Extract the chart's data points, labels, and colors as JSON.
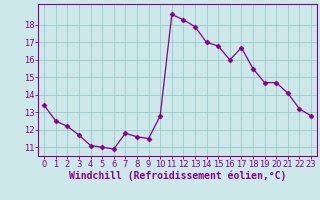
{
  "x": [
    0,
    1,
    2,
    3,
    4,
    5,
    6,
    7,
    8,
    9,
    10,
    11,
    12,
    13,
    14,
    15,
    16,
    17,
    18,
    19,
    20,
    21,
    22,
    23
  ],
  "y": [
    13.4,
    12.5,
    12.2,
    11.7,
    11.1,
    11.0,
    10.9,
    11.8,
    11.6,
    11.5,
    12.8,
    18.6,
    18.3,
    17.9,
    17.0,
    16.8,
    16.0,
    16.7,
    15.5,
    14.7,
    14.7,
    14.1,
    13.2,
    12.8
  ],
  "line_color": "#880088",
  "marker": "D",
  "marker_size": 2.5,
  "bg_color": "#cce8e8",
  "grid_color": "#99cccc",
  "xlabel": "Windchill (Refroidissement éolien,°C)",
  "xlabel_fontsize": 7,
  "tick_fontsize": 6,
  "ylim": [
    10.5,
    19.2
  ],
  "xlim": [
    -0.5,
    23.5
  ],
  "yticks": [
    11,
    12,
    13,
    14,
    15,
    16,
    17,
    18
  ],
  "xticks": [
    0,
    1,
    2,
    3,
    4,
    5,
    6,
    7,
    8,
    9,
    10,
    11,
    12,
    13,
    14,
    15,
    16,
    17,
    18,
    19,
    20,
    21,
    22,
    23
  ]
}
